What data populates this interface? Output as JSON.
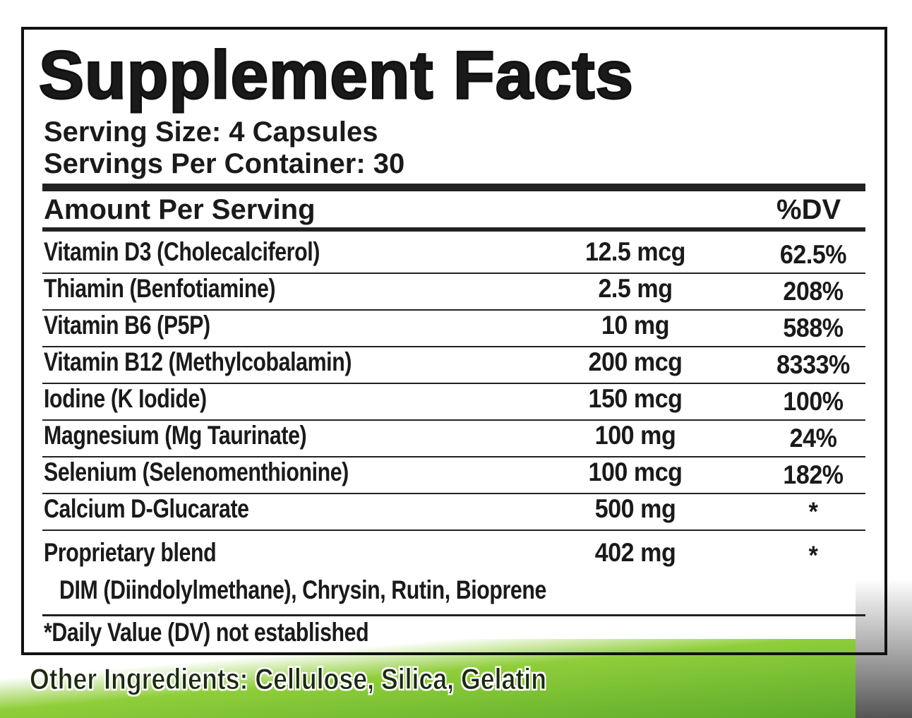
{
  "title": "Supplement Facts",
  "serving_size": "Serving Size: 4 Capsules",
  "servings_per_container": "Servings Per Container: 30",
  "header": {
    "amount": "Amount Per Serving",
    "dv": "%DV"
  },
  "rows": [
    {
      "name": "Vitamin D3 (Cholecalciferol)",
      "amount": "12.5 mcg",
      "dv": "62.5%"
    },
    {
      "name": "Thiamin (Benfotiamine)",
      "amount": "2.5 mg",
      "dv": "208%"
    },
    {
      "name": "Vitamin B6 (P5P)",
      "amount": "10 mg",
      "dv": "588%"
    },
    {
      "name": "Vitamin B12 (Methylcobalamin)",
      "amount": "200 mcg",
      "dv": "8333%"
    },
    {
      "name": "Iodine (K Iodide)",
      "amount": "150 mcg",
      "dv": "100%"
    },
    {
      "name": "Magnesium (Mg Taurinate)",
      "amount": "100 mg",
      "dv": "24%"
    },
    {
      "name": "Selenium (Selenomenthionine)",
      "amount": "100 mcg",
      "dv": "182%"
    },
    {
      "name": "Calcium D-Glucarate",
      "amount": "500 mg",
      "dv": "*"
    },
    {
      "name": "Proprietary blend",
      "amount": "402 mg",
      "dv": "*"
    }
  ],
  "blend_ingredients": "DIM (Diindolylmethane), Chrysin, Rutin, Bioprene",
  "footnote": "*Daily Value (DV) not established",
  "other_ingredients": "Other Ingredients: Cellulose, Silica, Gelatin"
}
